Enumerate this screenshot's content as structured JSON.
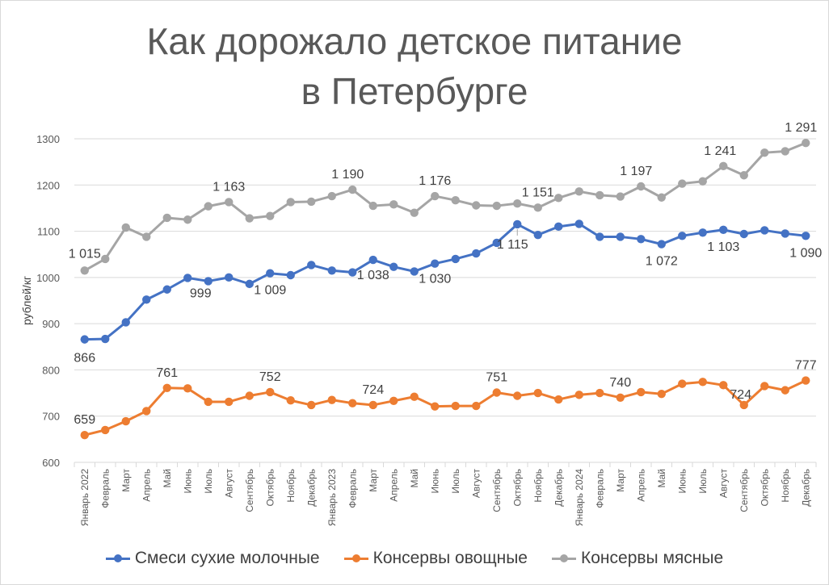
{
  "chart_data": {
    "type": "line",
    "title_line1": "Как дорожало детское питание",
    "title_line2": "в Петербурге",
    "ylabel": "рублей/кг",
    "ylim": [
      600,
      1300
    ],
    "yticks": [
      "600",
      "700",
      "800",
      "900",
      "1000",
      "1100",
      "1200",
      "1300"
    ],
    "grid": true,
    "legend_position": "bottom",
    "categories": [
      "Январь 2022",
      "Февраль",
      "Март",
      "Апрель",
      "Май",
      "Июнь",
      "Июль",
      "Август",
      "Сентябрь",
      "Октябрь",
      "Ноябрь",
      "Декабрь",
      "Январь 2023",
      "Февраль",
      "Март",
      "Апрель",
      "Май",
      "Июнь",
      "Июль",
      "Август",
      "Сентябрь",
      "Октябрь",
      "Ноябрь",
      "Декабрь",
      "Январь 2024",
      "Февраль",
      "Март",
      "Апрель",
      "Май",
      "Июнь",
      "Июль",
      "Август",
      "Сентябрь",
      "Октябрь",
      "Ноябрь",
      "Декабрь"
    ],
    "series": [
      {
        "name": "Смеси сухие молочные",
        "color": "#4472c4",
        "values": [
          866,
          867,
          903,
          952,
          974,
          999,
          992,
          1000,
          986,
          1009,
          1005,
          1027,
          1015,
          1011,
          1038,
          1023,
          1013,
          1030,
          1040,
          1052,
          1075,
          1115,
          1092,
          1110,
          1116,
          1088,
          1088,
          1083,
          1072,
          1090,
          1097,
          1103,
          1094,
          1102,
          1095,
          1090
        ],
        "labels": [
          {
            "i": 0,
            "text": "866"
          },
          {
            "i": 5,
            "text": "999"
          },
          {
            "i": 9,
            "text": "1 009"
          },
          {
            "i": 14,
            "text": "1 038"
          },
          {
            "i": 17,
            "text": "1 030"
          },
          {
            "i": 21,
            "text": "1 115"
          },
          {
            "i": 28,
            "text": "1 072"
          },
          {
            "i": 31,
            "text": "1 103"
          },
          {
            "i": 35,
            "text": "1 090"
          }
        ]
      },
      {
        "name": "Консервы овощные",
        "color": "#ed7d31",
        "values": [
          659,
          670,
          689,
          711,
          761,
          760,
          731,
          731,
          744,
          752,
          734,
          724,
          735,
          728,
          724,
          733,
          742,
          721,
          722,
          722,
          751,
          744,
          750,
          736,
          746,
          750,
          740,
          752,
          748,
          770,
          774,
          767,
          724,
          765,
          756,
          777
        ],
        "labels": [
          {
            "i": 0,
            "text": "659"
          },
          {
            "i": 4,
            "text": "761"
          },
          {
            "i": 9,
            "text": "752"
          },
          {
            "i": 14,
            "text": "724"
          },
          {
            "i": 20,
            "text": "751"
          },
          {
            "i": 26,
            "text": "740"
          },
          {
            "i": 32,
            "text": "724"
          },
          {
            "i": 35,
            "text": "777"
          }
        ]
      },
      {
        "name": "Консервы мясные",
        "color": "#a5a5a5",
        "values": [
          1015,
          1040,
          1108,
          1088,
          1129,
          1125,
          1154,
          1163,
          1128,
          1133,
          1163,
          1164,
          1176,
          1190,
          1155,
          1158,
          1140,
          1176,
          1167,
          1156,
          1155,
          1160,
          1151,
          1172,
          1186,
          1178,
          1175,
          1197,
          1173,
          1203,
          1208,
          1241,
          1221,
          1270,
          1273,
          1291
        ],
        "labels": [
          {
            "i": 0,
            "text": "1 015"
          },
          {
            "i": 7,
            "text": "1 163"
          },
          {
            "i": 13,
            "text": "1 190"
          },
          {
            "i": 17,
            "text": "1 176"
          },
          {
            "i": 22,
            "text": "1 151"
          },
          {
            "i": 27,
            "text": "1 197"
          },
          {
            "i": 31,
            "text": "1 241"
          },
          {
            "i": 35,
            "text": "1 291"
          }
        ]
      }
    ]
  }
}
